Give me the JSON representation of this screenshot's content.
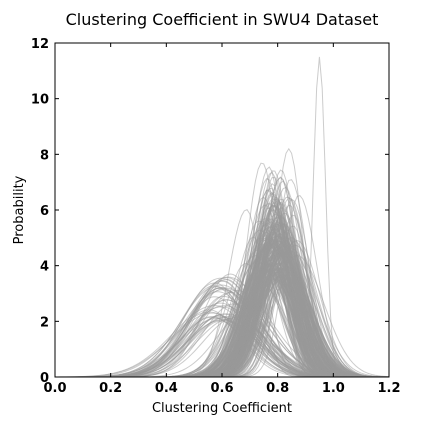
{
  "chart_data": {
    "type": "line",
    "title": "Clustering Coefficient in SWU4 Dataset",
    "xlabel": "Clustering Coefficient",
    "ylabel": "Probability",
    "xlim": [
      0.0,
      1.2
    ],
    "ylim": [
      0,
      12
    ],
    "xticks": [
      "0.0",
      "0.2",
      "0.4",
      "0.6",
      "0.8",
      "1.0",
      "1.2"
    ],
    "yticks": [
      "0",
      "2",
      "4",
      "6",
      "8",
      "10",
      "12"
    ],
    "grid": false,
    "legend": "none",
    "line_color": "#999999",
    "line_alpha": 0.5,
    "series_description": "Several hundred overlapping density curves, mostly peaked near 0.75-0.85 with heights 3-8; a smaller group peaks near 0.55-0.65 at heights 2-3.5; one outlier peaks sharply at 0.95 with height about 11.5.",
    "notable_series": [
      {
        "peak_x": 0.95,
        "peak_y": 11.5
      },
      {
        "peak_x": 0.84,
        "peak_y": 8.2
      },
      {
        "peak_x": 0.63,
        "peak_y": 3.7
      }
    ]
  }
}
